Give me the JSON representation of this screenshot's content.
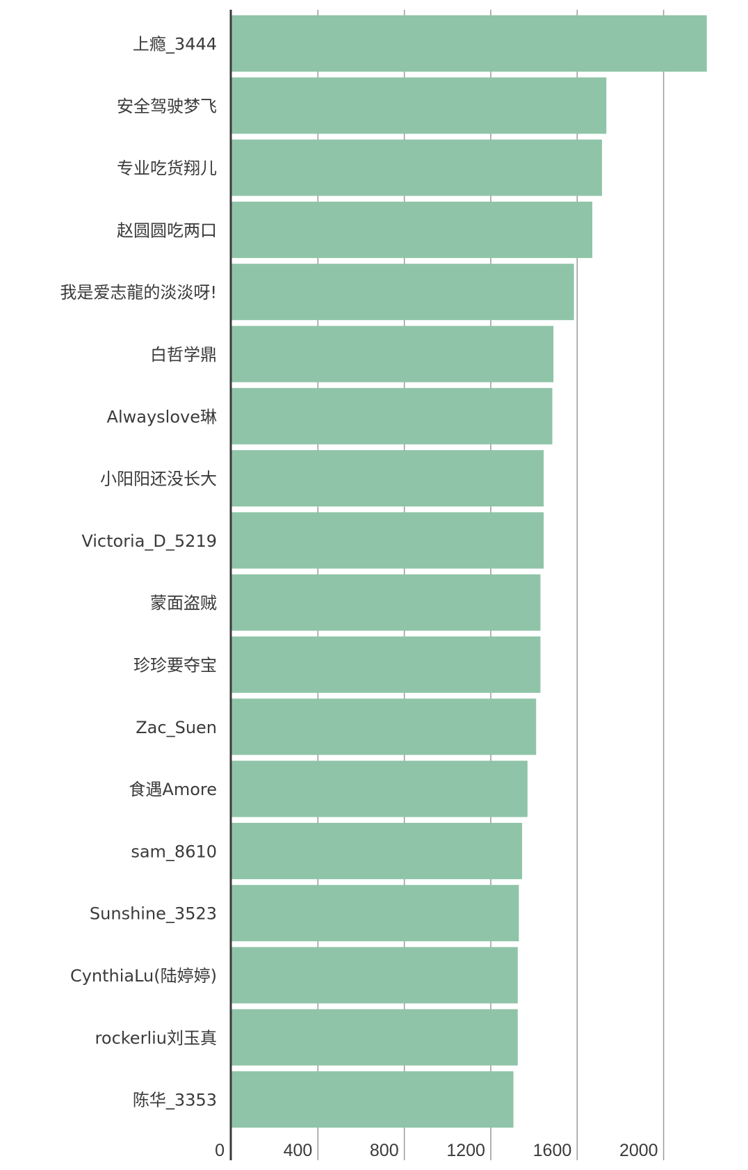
{
  "chart_data": {
    "type": "bar",
    "orientation": "horizontal",
    "categories": [
      "上瘾_3444",
      "安全驾驶梦飞",
      "专业吃货翔儿",
      "赵圆圆吃两口",
      "我是爱志龍的淡淡呀!",
      "白哲学鼎",
      "Alwayslove琳",
      "小阳阳还没长大",
      "Victoria_D_5219",
      "蒙面盗贼",
      "珍珍要夺宝",
      "Zac_Suen",
      "食遇Amore",
      "sam_8610",
      "Sunshine_3523",
      "CynthiaLu(陆婷婷)",
      "rockerliu刘玉真",
      "陈华_3353"
    ],
    "values": [
      2200,
      1735,
      1715,
      1670,
      1585,
      1490,
      1485,
      1445,
      1445,
      1430,
      1430,
      1410,
      1370,
      1345,
      1330,
      1325,
      1325,
      1305
    ],
    "xlim": [
      0,
      2200
    ],
    "xticks": [
      "0",
      "400",
      "800",
      "1200",
      "1600",
      "2000"
    ],
    "xtick_values": [
      0,
      400,
      800,
      1200,
      1600,
      2000
    ],
    "grid": true,
    "bar_color": "#8fc4a8",
    "title": "",
    "xlabel": "",
    "ylabel": ""
  }
}
